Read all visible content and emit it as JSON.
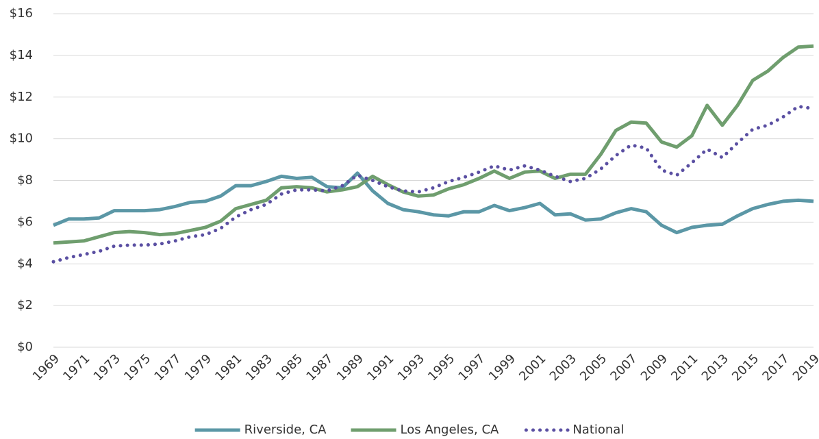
{
  "chart_data": {
    "type": "line",
    "categories": [
      "1969",
      null,
      "1971",
      null,
      "1973",
      null,
      "1975",
      null,
      "1977",
      null,
      "1979",
      null,
      "1981",
      null,
      "1983",
      null,
      "1985",
      null,
      "1987",
      null,
      "1989",
      null,
      "1991",
      null,
      "1993",
      null,
      "1995",
      null,
      "1997",
      null,
      "1999",
      null,
      "2001",
      null,
      "2003",
      null,
      "2005",
      null,
      "2007",
      null,
      "2009",
      null,
      "2011",
      null,
      "2013",
      null,
      "2015",
      null,
      "2017",
      null,
      "2019"
    ],
    "series": [
      {
        "name": "Riverside, CA",
        "color": "#5b97a6",
        "dash": "solid",
        "values": [
          5.85,
          6.15,
          6.15,
          6.2,
          6.55,
          6.55,
          6.55,
          6.6,
          6.75,
          6.95,
          7.0,
          7.25,
          7.75,
          7.75,
          7.95,
          8.2,
          8.1,
          8.15,
          7.7,
          7.65,
          8.35,
          7.5,
          6.9,
          6.6,
          6.5,
          6.35,
          6.3,
          6.5,
          6.5,
          6.8,
          6.55,
          6.7,
          6.9,
          6.35,
          6.4,
          6.1,
          6.15,
          6.45,
          6.65,
          6.5,
          5.85,
          5.5,
          5.75,
          5.85,
          5.9,
          6.3,
          6.65,
          6.85,
          7.0,
          7.05,
          7.0
        ]
      },
      {
        "name": "Los Angeles, CA",
        "color": "#6f9e6e",
        "dash": "solid",
        "values": [
          5.0,
          5.05,
          5.1,
          5.3,
          5.5,
          5.55,
          5.5,
          5.4,
          5.45,
          5.6,
          5.75,
          6.05,
          6.65,
          6.85,
          7.05,
          7.65,
          7.7,
          7.65,
          7.45,
          7.55,
          7.7,
          8.2,
          7.8,
          7.45,
          7.25,
          7.3,
          7.6,
          7.8,
          8.1,
          8.45,
          8.1,
          8.4,
          8.45,
          8.1,
          8.3,
          8.3,
          9.25,
          10.4,
          10.8,
          10.75,
          9.85,
          9.6,
          10.15,
          11.6,
          10.65,
          11.6,
          12.8,
          13.25,
          13.9,
          14.4,
          14.45
        ]
      },
      {
        "name": "National",
        "color": "#5a4fa2",
        "dash": "dotted",
        "values": [
          4.1,
          4.3,
          4.45,
          4.6,
          4.85,
          4.9,
          4.9,
          4.95,
          5.1,
          5.3,
          5.4,
          5.7,
          6.25,
          6.6,
          6.85,
          7.35,
          7.55,
          7.55,
          7.5,
          7.75,
          8.25,
          8.0,
          7.7,
          7.5,
          7.45,
          7.65,
          7.95,
          8.15,
          8.4,
          8.7,
          8.5,
          8.7,
          8.5,
          8.2,
          7.95,
          8.1,
          8.55,
          9.2,
          9.7,
          9.55,
          8.5,
          8.25,
          8.85,
          9.5,
          9.1,
          9.8,
          10.45,
          10.65,
          11.05,
          11.55,
          11.45
        ]
      }
    ],
    "ylim": [
      0,
      16
    ],
    "yticks": [
      {
        "value": 0,
        "label": "$0"
      },
      {
        "value": 2,
        "label": "$2"
      },
      {
        "value": 4,
        "label": "$4"
      },
      {
        "value": 6,
        "label": "$6"
      },
      {
        "value": 8,
        "label": "$8"
      },
      {
        "value": 10,
        "label": "$10"
      },
      {
        "value": 12,
        "label": "$12"
      },
      {
        "value": 14,
        "label": "$14"
      },
      {
        "value": 16,
        "label": "$16"
      }
    ],
    "grid": true,
    "legend": "bottom"
  }
}
